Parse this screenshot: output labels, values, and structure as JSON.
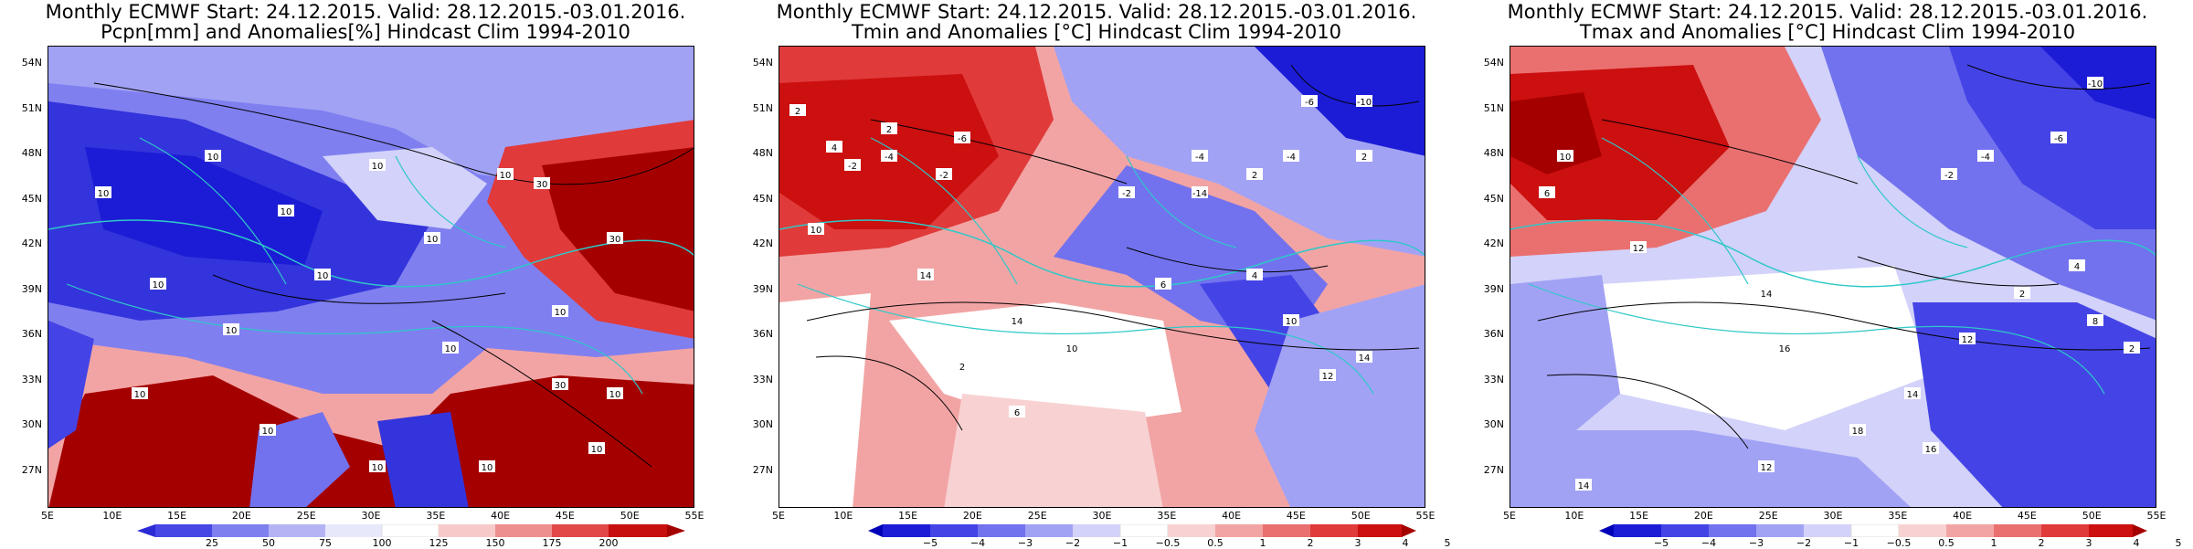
{
  "panels": [
    {
      "title_line1": "Monthly ECMWF Start: 24.12.2015. Valid: 28.12.2015.-03.01.2016.",
      "title_line2": "Pcpn[mm] and Anomalies[%] Hindcast Clim 1994-2010",
      "variable": "precipitation",
      "colorbar": {
        "ticks": [
          "25",
          "50",
          "75",
          "100",
          "125",
          "150",
          "175",
          "200"
        ],
        "colors": [
          "#2b2bd6",
          "#4747e6",
          "#7f7ff0",
          "#b4b4f5",
          "#e8e8fb",
          "#ffffff",
          "#f7caca",
          "#ee8f8f",
          "#e24848",
          "#c80f0f",
          "#a50000"
        ]
      },
      "contour_labels": [
        "10",
        "10",
        "10",
        "10",
        "10",
        "10",
        "10",
        "10",
        "10",
        "10",
        "10",
        "10",
        "10",
        "10",
        "10",
        "30",
        "30",
        "30",
        "10",
        "10"
      ]
    },
    {
      "title_line1": "Monthly ECMWF Start: 24.12.2015. Valid: 28.12.2015.-03.01.2016.",
      "title_line2": "Tmin and Anomalies [°C] Hindcast Clim 1994-2010",
      "variable": "tmin",
      "colorbar": {
        "ticks": [
          "−5",
          "−4",
          "−3",
          "−2",
          "−1",
          "−0.5",
          "0.5",
          "1",
          "2",
          "3",
          "4",
          "5"
        ],
        "colors": [
          "#0000b8",
          "#1c1cd6",
          "#4444e6",
          "#7272ee",
          "#a2a2f5",
          "#d2d2fa",
          "#ffffff",
          "#f8d2d2",
          "#f2a4a4",
          "#ea7070",
          "#e03a3a",
          "#cc0f0f",
          "#a50000"
        ]
      },
      "contour_labels": [
        "2",
        "4",
        "2",
        "-2",
        "-4",
        "-6",
        "-2",
        "10",
        "14",
        "14",
        "10",
        "6",
        "2",
        "-4",
        "-6",
        "-10",
        "-14",
        "2",
        "6",
        "10",
        "12",
        "14",
        "-2",
        "-4",
        "2",
        "4"
      ]
    },
    {
      "title_line1": "Monthly ECMWF Start: 24.12.2015. Valid: 28.12.2015.-03.01.2016.",
      "title_line2": "Tmax and Anomalies [°C] Hindcast Clim 1994-2010",
      "variable": "tmax",
      "colorbar": {
        "ticks": [
          "−5",
          "−4",
          "−3",
          "−2",
          "−1",
          "−0.5",
          "0.5",
          "1",
          "2",
          "3",
          "4",
          "5"
        ],
        "colors": [
          "#0000b8",
          "#1c1cd6",
          "#4444e6",
          "#7272ee",
          "#a2a2f5",
          "#d2d2fa",
          "#ffffff",
          "#f8d2d2",
          "#f2a4a4",
          "#ea7070",
          "#e03a3a",
          "#cc0f0f",
          "#a50000"
        ]
      },
      "contour_labels": [
        "6",
        "10",
        "12",
        "14",
        "16",
        "18",
        "2",
        "4",
        "-2",
        "-4",
        "-6",
        "-10",
        "12",
        "14",
        "16",
        "8",
        "2",
        "14",
        "12"
      ]
    }
  ],
  "lat_labels": [
    "54N",
    "51N",
    "48N",
    "45N",
    "42N",
    "39N",
    "36N",
    "33N",
    "30N",
    "27N"
  ],
  "lon_labels": [
    "5E",
    "10E",
    "15E",
    "20E",
    "25E",
    "30E",
    "35E",
    "40E",
    "45E",
    "50E",
    "55E"
  ],
  "colors": {
    "coastline": "#2ec8c8",
    "contour": "#000000"
  }
}
